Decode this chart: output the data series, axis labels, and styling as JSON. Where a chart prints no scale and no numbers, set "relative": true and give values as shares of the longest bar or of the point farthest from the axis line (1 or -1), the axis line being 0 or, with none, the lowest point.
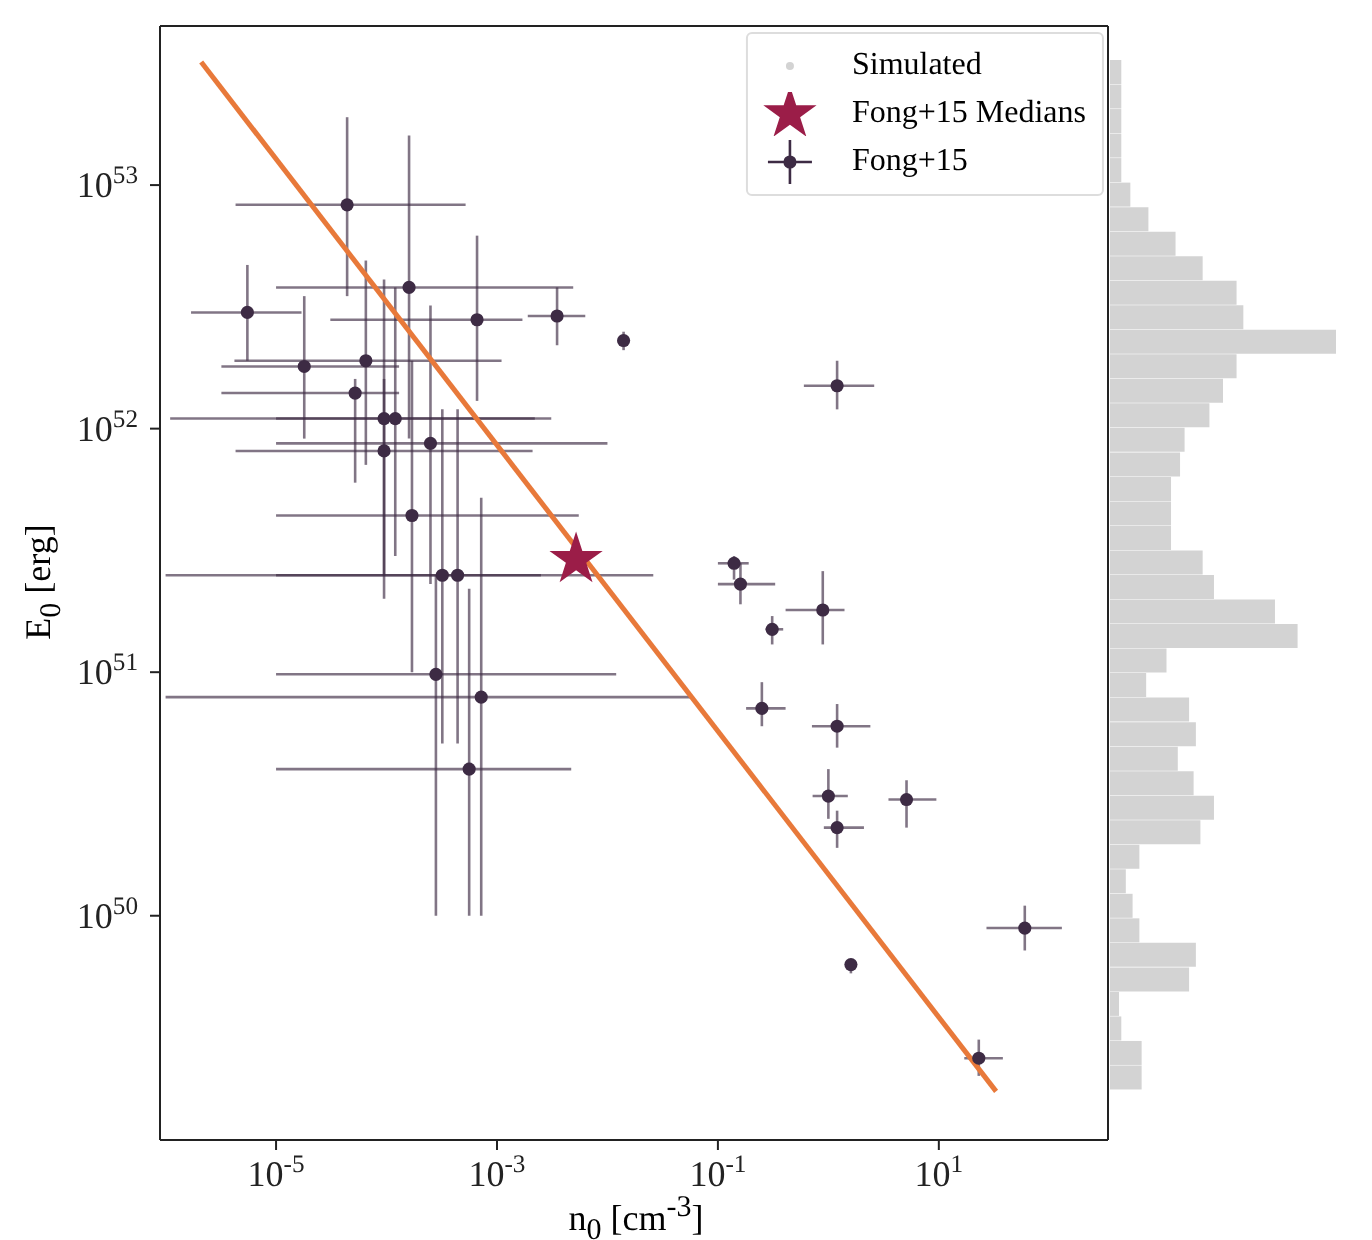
{
  "chart_data": [
    {
      "type": "scatter",
      "xlabel": "n$_{0}$ [cm$^{-3}$]",
      "ylabel": "E$_{0}$ [erg]",
      "log": "xy",
      "legend": "top right",
      "xlim": [
        8.9e-07,
        340
      ],
      "ylim": [
        1.2e+49,
        4.5e+53
      ],
      "xticks": [
        {
          "value": 1e-05,
          "label": "10$^{-5}$"
        },
        {
          "value": 0.001,
          "label": "10$^{-3}$"
        },
        {
          "value": 0.1,
          "label": "10$^{-1}$"
        },
        {
          "value": 10,
          "label": "10$^{1}$"
        }
      ],
      "yticks": [
        {
          "value": 1e+50,
          "label": "10$^{50}$"
        },
        {
          "value": 1e+51,
          "label": "10$^{51}$"
        },
        {
          "value": 1e+52,
          "label": "10$^{52}$"
        },
        {
          "value": 1e+53,
          "label": "10$^{53}$"
        }
      ],
      "series": [
        {
          "type": "line",
          "color": "#e8793a",
          "x": [
            2.1e-06,
            33
          ],
          "values": [
            3.2e+53,
            1.9e+49
          ]
        },
        {
          "name": "Fong+15 Medians",
          "marker": "star",
          "color": "#9b1d48",
          "x": [
            0.0052
          ],
          "values": [
            2.9e+51
          ]
        },
        {
          "name": "Fong+15",
          "marker": "circle",
          "color": "#3d2b44",
          "x": [
            4.4e-05,
            5.5e-06,
            0.00016,
            0.00066,
            0.0035,
            0.014,
            1.8e-05,
            6.5e-05,
            5.2e-05,
            9.5e-05,
            0.00012,
            0.00025,
            9.5e-05,
            0.00017,
            0.00032,
            0.00044,
            0.00028,
            0.00072,
            0.00056,
            1.2,
            0.14,
            0.16,
            0.89,
            0.31,
            0.25,
            1.2,
            1.0,
            1.2,
            5.1,
            60,
            1.6,
            23
          ],
          "values": [
            8.3e+52,
            3e+52,
            3.8e+52,
            2.8e+52,
            2.9e+52,
            2.3e+52,
            1.8e+52,
            1.9e+52,
            1.4e+52,
            1.1e+52,
            1.1e+52,
            8.7e+51,
            8.1e+51,
            4.4e+51,
            2.5e+51,
            2.5e+51,
            9.8e+50,
            7.9e+50,
            4e+50,
            1.5e+52,
            2.8e+51,
            2.3e+51,
            1.8e+51,
            1.5e+51,
            7.1e+50,
            6e+50,
            3.1e+50,
            2.3e+50,
            3e+50,
            8.9e+49,
            6.3e+49,
            2.6e+49
          ],
          "xerrors": [
            [
              4.3e-06,
              0.00052
            ],
            [
              1.7e-06,
              1.7e-05
            ],
            [
              1e-05,
              0.0049
            ],
            [
              3.1e-05,
              0.0017
            ],
            [
              0.0019,
              0.0063
            ],
            null,
            [
              3.2e-06,
              0.00013
            ],
            [
              4.2e-06,
              0.0011
            ],
            [
              3.2e-06,
              0.00013
            ],
            [
              1.1e-06,
              0.0031
            ],
            [
              1e-05,
              0.0022
            ],
            [
              1e-05,
              0.01
            ],
            [
              4.3e-06,
              0.0021
            ],
            [
              1e-05,
              0.0055
            ],
            [
              1e-06,
              0.026
            ],
            [
              1e-05,
              0.0025
            ],
            [
              1e-05,
              0.012
            ],
            [
              1e-06,
              0.058
            ],
            [
              1e-05,
              0.0047
            ],
            [
              0.6,
              2.6
            ],
            [
              0.1,
              0.19
            ],
            [
              0.1,
              0.33
            ],
            [
              0.41,
              1.4
            ],
            [
              0.27,
              0.39
            ],
            [
              0.18,
              0.41
            ],
            [
              0.71,
              2.4
            ],
            [
              0.72,
              1.5
            ],
            [
              0.91,
              2.1
            ],
            [
              3.5,
              9.5
            ],
            [
              27,
              130
            ],
            null,
            [
              17,
              38
            ]
          ],
          "errors": [
            [
              3.5e+52,
              1.9e+53
            ],
            [
              1.9e+52,
              4.7e+52
            ],
            [
              9.1e+51,
              1.6e+53
            ],
            [
              1.3e+52,
              6.2e+52
            ],
            [
              2.2e+52,
              3.8e+52
            ],
            [
              2.1e+52,
              2.5e+52
            ],
            [
              9.1e+51,
              3.5e+52
            ],
            [
              7.1e+51,
              4.9e+52
            ],
            [
              6e+51,
              1.6e+52
            ],
            [
              2e+51,
              4.1e+52
            ],
            [
              3e+51,
              3.8e+52
            ],
            [
              2.3e+51,
              3.2e+52
            ],
            [
              2.5e+51,
              1.6e+52
            ],
            [
              1e+51,
              1.9e+52
            ],
            [
              5.1e+50,
              1.2e+52
            ],
            [
              5.1e+50,
              1.2e+52
            ],
            [
              1e+50,
              2.5e+51
            ],
            [
              1e+50,
              5.2e+51
            ],
            [
              1e+50,
              2.2e+51
            ],
            [
              1.2e+52,
              1.9e+52
            ],
            [
              2.4e+51,
              3e+51
            ],
            [
              1.9e+51,
              2.8e+51
            ],
            [
              1.3e+51,
              2.6e+51
            ],
            [
              1.3e+51,
              1.7e+51
            ],
            [
              6e+50,
              9.1e+50
            ],
            [
              4.9e+50,
              7.4e+50
            ],
            [
              2.5e+50,
              4e+50
            ],
            [
              1.9e+50,
              2.7e+50
            ],
            [
              2.3e+50,
              3.6e+50
            ],
            [
              7.2e+49,
              1.1e+50
            ],
            [
              5.8e+49,
              6.6e+49
            ],
            [
              2.2e+49,
              3.1e+49
            ]
          ]
        }
      ]
    },
    {
      "type": "bar",
      "orientation": "horizontal",
      "relative": true,
      "categories": [
        null,
        null,
        null,
        null,
        null,
        null,
        null,
        null,
        null,
        null,
        null,
        null,
        null,
        null,
        null,
        null,
        null,
        null,
        null,
        null,
        null,
        null,
        null,
        null,
        null,
        null,
        null,
        null,
        null,
        null,
        null,
        null,
        null,
        null,
        null,
        null,
        null,
        null,
        null,
        null,
        null,
        null
      ],
      "series": [
        {
          "name": "Simulated",
          "color": "#d3d3d3",
          "values": [
            0.05,
            0.05,
            0.05,
            0.05,
            0.05,
            0.09,
            0.17,
            0.29,
            0.41,
            0.56,
            0.59,
            1.0,
            0.56,
            0.5,
            0.44,
            0.33,
            0.31,
            0.27,
            0.27,
            0.27,
            0.41,
            0.46,
            0.73,
            0.83,
            0.25,
            0.16,
            0.35,
            0.38,
            0.3,
            0.37,
            0.46,
            0.4,
            0.13,
            0.07,
            0.1,
            0.13,
            0.38,
            0.35,
            0.04,
            0.05,
            0.14,
            0.14
          ]
        }
      ]
    }
  ]
}
